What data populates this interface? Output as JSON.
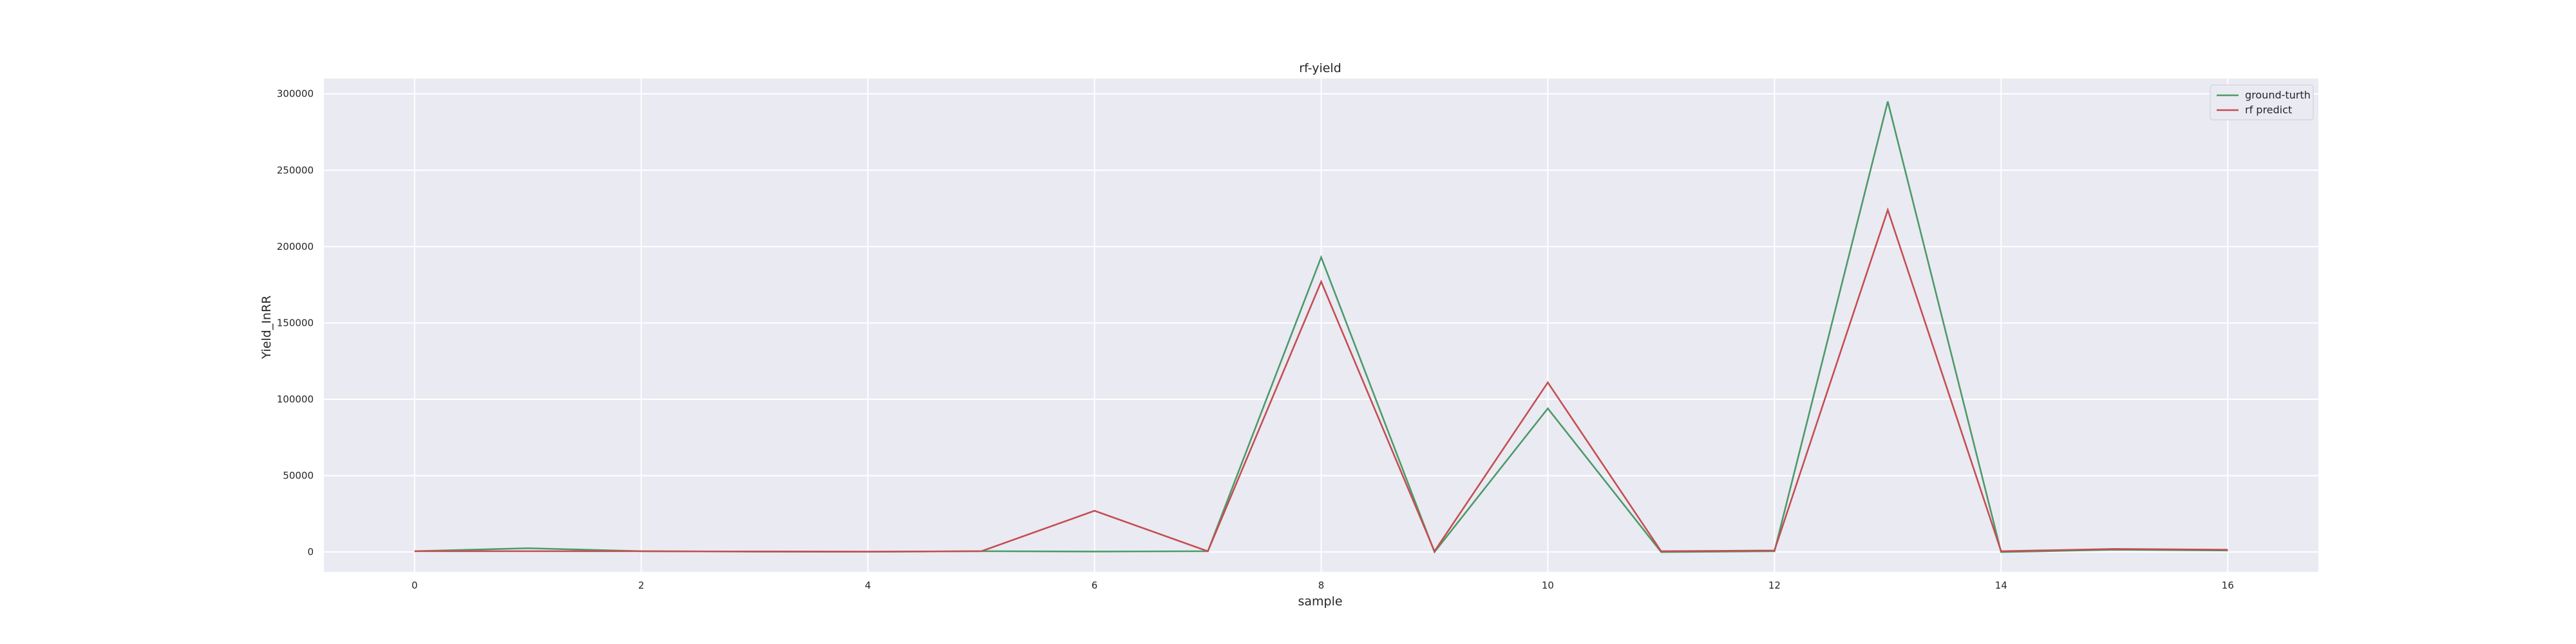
{
  "chart_data": {
    "type": "line",
    "title": "rf-yield",
    "xlabel": "sample",
    "ylabel": "Yield_InRR",
    "x": [
      0,
      1,
      2,
      3,
      4,
      5,
      6,
      7,
      8,
      9,
      10,
      11,
      12,
      13,
      14,
      15,
      16
    ],
    "xlim": [
      -0.8,
      16.8
    ],
    "ylim": [
      -13000,
      310000
    ],
    "xticks": [
      0,
      2,
      4,
      6,
      8,
      10,
      12,
      14,
      16
    ],
    "yticks": [
      0,
      50000,
      100000,
      150000,
      200000,
      250000,
      300000
    ],
    "xtick_labels": [
      "0",
      "2",
      "4",
      "6",
      "8",
      "10",
      "12",
      "14",
      "16"
    ],
    "ytick_labels": [
      "0",
      "50000",
      "100000",
      "150000",
      "200000",
      "250000",
      "300000"
    ],
    "grid": true,
    "legend_position": "top-right",
    "background": "#eaeaf2",
    "series": [
      {
        "name": "ground-turth",
        "color": "#4c9a6a",
        "values": [
          500,
          2500,
          500,
          300,
          200,
          500,
          300,
          500,
          193000,
          0,
          94000,
          0,
          500,
          295000,
          0,
          1500,
          1000
        ]
      },
      {
        "name": "rf predict",
        "color": "#c44e52",
        "values": [
          500,
          500,
          500,
          300,
          200,
          500,
          27000,
          500,
          177000,
          500,
          111000,
          500,
          1000,
          224000,
          500,
          2000,
          1500
        ]
      }
    ]
  }
}
